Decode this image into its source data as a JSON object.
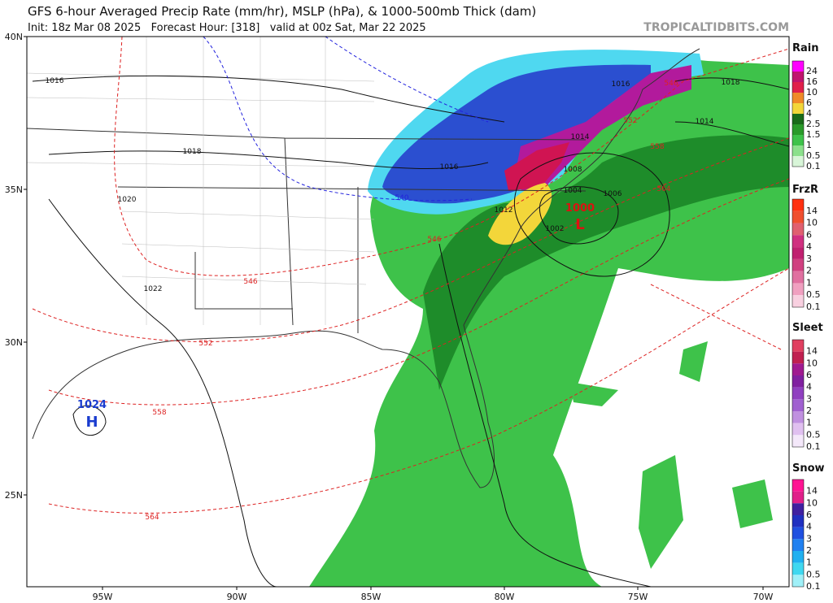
{
  "header": {
    "title": "GFS 6-hour Averaged Precip Rate (mm/hr), MSLP (hPa), & 1000-500mb Thick (dam)",
    "subtitle": "Init: 18z Mar 08 2025   Forecast Hour: [318]   valid at 00z Sat, Mar 22 2025",
    "watermark": "TROPICALTIDBITS.COM"
  },
  "axes": {
    "lat_labels": [
      "40N",
      "35N",
      "30N",
      "25N"
    ],
    "lon_labels": [
      "95W",
      "90W",
      "85W",
      "80W",
      "75W",
      "70W"
    ]
  },
  "legends": [
    {
      "title": "Rain",
      "labels": [
        "24",
        "16",
        "10",
        "6",
        "4",
        "2.5",
        "1.5",
        "1",
        "0.5",
        "0.1"
      ]
    },
    {
      "title": "FrzR",
      "labels": [
        "14",
        "10",
        "6",
        "4",
        "3",
        "2",
        "1",
        "0.5",
        "0.1"
      ]
    },
    {
      "title": "Sleet",
      "labels": [
        "14",
        "10",
        "6",
        "4",
        "3",
        "2",
        "1",
        "0.5",
        "0.1"
      ]
    },
    {
      "title": "Snow",
      "labels": [
        "14",
        "10",
        "6",
        "4",
        "3",
        "2",
        "1",
        "0.5",
        "0.1"
      ]
    }
  ],
  "map_labels": [
    "1016",
    "1018",
    "1020",
    "1022",
    "1024",
    "H",
    "1016",
    "1014",
    "1016",
    "1018",
    "1014",
    "1008",
    "1006",
    "1004",
    "1002",
    "1000",
    "L",
    "1012",
    "546",
    "552",
    "558",
    "564",
    "540",
    "546",
    "546",
    "552",
    "558",
    "564"
  ]
}
